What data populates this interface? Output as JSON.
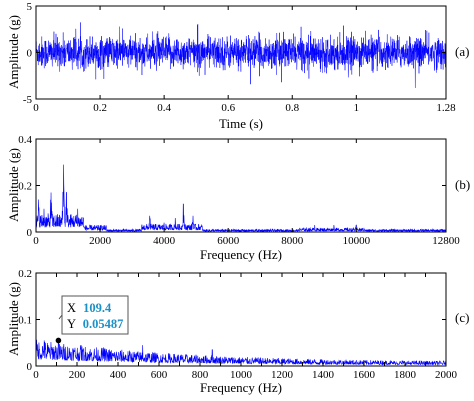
{
  "chart_data": [
    {
      "type": "line",
      "panel_label": "(a)",
      "xlabel": "Time (s)",
      "ylabel": "Amplitude (g)",
      "xlim": [
        0,
        1.28
      ],
      "ylim": [
        -5,
        5
      ],
      "xticks": [
        0,
        0.2,
        0.4,
        0.6,
        0.8,
        1,
        1.28
      ],
      "xtick_labels": [
        "0",
        "0.2",
        "0.4",
        "0.6",
        "0.8",
        "1",
        "1.28"
      ],
      "yticks": [
        -5,
        0,
        5
      ],
      "ytick_labels": [
        "-5",
        "0",
        "5"
      ],
      "grid": false,
      "series": [
        {
          "color": "#0000ff",
          "description": "dense vibration signal, amplitude mostly within ±2 g, peaks near ±3.5 g"
        }
      ]
    },
    {
      "type": "line",
      "panel_label": "(b)",
      "xlabel": "Frequency (Hz)",
      "ylabel": "Amplitude (g)",
      "xlim": [
        0,
        12800
      ],
      "ylim": [
        0,
        0.4
      ],
      "xticks": [
        0,
        2000,
        4000,
        6000,
        8000,
        10000,
        12800
      ],
      "xtick_labels": [
        "0",
        "2000",
        "4000",
        "6000",
        "8000",
        "10000",
        "12800"
      ],
      "yticks": [
        0,
        0.2,
        0.4
      ],
      "ytick_labels": [
        "0",
        "0.2",
        "0.4"
      ],
      "grid": false,
      "series": [
        {
          "color": "#0000ff",
          "peaks": [
            {
              "x": 80,
              "y": 0.14
            },
            {
              "x": 250,
              "y": 0.1
            },
            {
              "x": 470,
              "y": 0.17
            },
            {
              "x": 860,
              "y": 0.29
            },
            {
              "x": 950,
              "y": 0.17
            },
            {
              "x": 1300,
              "y": 0.1
            },
            {
              "x": 3550,
              "y": 0.07
            },
            {
              "x": 4000,
              "y": 0.04
            },
            {
              "x": 4350,
              "y": 0.06
            },
            {
              "x": 4600,
              "y": 0.12
            },
            {
              "x": 4900,
              "y": 0.07
            },
            {
              "x": 8700,
              "y": 0.03
            },
            {
              "x": 9300,
              "y": 0.03
            },
            {
              "x": 10000,
              "y": 0.03
            }
          ]
        }
      ]
    },
    {
      "type": "line",
      "panel_label": "(c)",
      "xlabel": "Frequency (Hz)",
      "ylabel": "Amplitude (g)",
      "xlim": [
        0,
        2000
      ],
      "ylim": [
        0,
        0.2
      ],
      "xticks": [
        0,
        100,
        200,
        300,
        400,
        500,
        600,
        700,
        800,
        900,
        1000,
        1100,
        1200,
        1300,
        1400,
        1500,
        1600,
        1700,
        1800,
        1900,
        2000
      ],
      "xtick_labels": [
        "0",
        "",
        "200",
        "",
        "400",
        "",
        "600",
        "",
        "800",
        "",
        "1000",
        "",
        "1200",
        "",
        "1400",
        "",
        "1600",
        "",
        "1800",
        "",
        "2000"
      ],
      "yticks": [
        0,
        0.1,
        0.2
      ],
      "ytick_labels": [
        "0",
        "0.1",
        "0.2"
      ],
      "grid": false,
      "series": [
        {
          "color": "#0000ff",
          "peaks": [
            {
              "x": 40,
              "y": 0.055
            },
            {
              "x": 109.4,
              "y": 0.05487
            },
            {
              "x": 220,
              "y": 0.045
            },
            {
              "x": 330,
              "y": 0.04
            },
            {
              "x": 520,
              "y": 0.045
            },
            {
              "x": 860,
              "y": 0.035
            }
          ]
        }
      ],
      "datatip": {
        "x_label": "X",
        "x_value": "109.4",
        "y_label": "Y",
        "y_value": "0.05487",
        "x": 109.4,
        "y": 0.05487
      }
    }
  ]
}
